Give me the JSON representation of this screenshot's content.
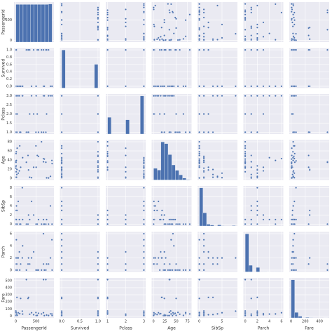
{
  "chart_data": {
    "type": "pairplot",
    "color": "#4c72b0",
    "panel_color": "#eaeaf2",
    "variables": [
      {
        "name": "PassengerId",
        "lim": [
          -44,
          936
        ],
        "xticks": [
          0,
          500
        ],
        "yticks": [
          0,
          500
        ],
        "bins": [
          1,
          90,
          179,
          268,
          357,
          446,
          535,
          624,
          713,
          802,
          891
        ],
        "counts": [
          89,
          89,
          89,
          89,
          89,
          89,
          89,
          89,
          89,
          90
        ]
      },
      {
        "name": "Survived",
        "lim": [
          -0.05,
          1.05
        ],
        "xticks": [
          {
            "value": 0,
            "label": "0.0"
          },
          {
            "value": 0.5,
            "label": "0.5"
          },
          {
            "value": 1,
            "label": "1.0"
          }
        ],
        "yticks": [
          {
            "value": 0,
            "label": "0.0"
          },
          {
            "value": 0.2,
            "label": "0.2"
          },
          {
            "value": 0.4,
            "label": "0.4"
          },
          {
            "value": 0.6,
            "label": "0.6"
          },
          {
            "value": 0.8,
            "label": "0.8"
          },
          {
            "value": 1,
            "label": "1.0"
          }
        ],
        "bins": [
          0,
          0.1,
          0.2,
          0.3,
          0.4,
          0.5,
          0.6,
          0.7,
          0.8,
          0.9,
          1
        ],
        "counts": [
          549,
          0,
          0,
          0,
          0,
          0,
          0,
          0,
          0,
          342
        ]
      },
      {
        "name": "Pclass",
        "lim": [
          0.9,
          3.1
        ],
        "xticks": [
          1,
          2,
          3
        ],
        "yticks": [
          {
            "value": 1,
            "label": "1.0"
          },
          {
            "value": 1.5,
            "label": "1.5"
          },
          {
            "value": 2,
            "label": "2.0"
          },
          {
            "value": 2.5,
            "label": "2.5"
          },
          {
            "value": 3,
            "label": "3.0"
          }
        ],
        "bins": [
          1,
          1.2,
          1.4,
          1.6,
          1.8,
          2,
          2.2,
          2.4,
          2.6,
          2.8,
          3
        ],
        "counts": [
          216,
          0,
          0,
          0,
          0,
          184,
          0,
          0,
          0,
          491
        ]
      },
      {
        "name": "Age",
        "lim": [
          -4,
          84
        ],
        "xticks": [
          0,
          25,
          50,
          75
        ],
        "yticks": [
          0,
          20,
          40,
          60,
          80
        ],
        "bins": [
          0.42,
          8.38,
          16.34,
          24.29,
          32.25,
          40.21,
          48.17,
          56.13,
          64.08,
          72.04,
          80
        ],
        "counts": [
          54,
          46,
          177,
          169,
          118,
          70,
          45,
          24,
          9,
          2
        ]
      },
      {
        "name": "SibSp",
        "lim": [
          -0.4,
          8.4
        ],
        "xticks": [
          0,
          5
        ],
        "yticks": [
          0,
          2,
          4,
          6,
          8
        ],
        "bins": [
          0,
          0.8,
          1.6,
          2.4,
          3.2,
          4,
          4.8,
          5.6,
          6.4,
          7.2,
          8
        ],
        "counts": [
          608,
          209,
          28,
          16,
          0,
          18,
          5,
          0,
          0,
          7
        ]
      },
      {
        "name": "Parch",
        "lim": [
          -0.3,
          6.3
        ],
        "xticks": [
          0,
          2,
          4,
          6
        ],
        "yticks": [
          0,
          2,
          4,
          6
        ],
        "bins": [
          0,
          0.6,
          1.2,
          1.8,
          2.4,
          3,
          3.6,
          4.2,
          4.8,
          5.4,
          6
        ],
        "counts": [
          678,
          118,
          0,
          80,
          0,
          5,
          4,
          0,
          5,
          1
        ]
      },
      {
        "name": "Fare",
        "lim": [
          -25,
          537
        ],
        "xticks": [
          0,
          200,
          400
        ],
        "yticks": [
          0,
          100,
          200,
          300,
          400,
          500
        ],
        "bins": [
          0,
          51.23,
          102.47,
          153.7,
          204.93,
          256.16,
          307.4,
          358.63,
          409.86,
          461.1,
          512.33
        ],
        "counts": [
          732,
          106,
          31,
          2,
          11,
          6,
          0,
          0,
          0,
          3
        ]
      }
    ],
    "rows": [
      [
        1,
        0,
        3,
        22,
        1,
        0,
        7.25
      ],
      [
        2,
        1,
        1,
        38,
        1,
        0,
        71.28
      ],
      [
        3,
        1,
        3,
        26,
        0,
        0,
        7.92
      ],
      [
        4,
        1,
        1,
        35,
        1,
        0,
        53.1
      ],
      [
        5,
        0,
        3,
        35,
        0,
        0,
        8.05
      ],
      [
        7,
        0,
        1,
        54,
        0,
        0,
        51.86
      ],
      [
        8,
        0,
        3,
        2,
        3,
        1,
        21.08
      ],
      [
        9,
        1,
        3,
        27,
        0,
        2,
        11.13
      ],
      [
        10,
        1,
        2,
        14,
        1,
        0,
        30.07
      ],
      [
        12,
        1,
        1,
        58,
        0,
        0,
        26.55
      ],
      [
        14,
        0,
        3,
        39,
        1,
        5,
        31.28
      ],
      [
        17,
        0,
        3,
        2,
        4,
        1,
        29.13
      ],
      [
        25,
        0,
        3,
        8,
        3,
        1,
        21.08
      ],
      [
        28,
        0,
        1,
        19,
        3,
        2,
        263
      ],
      [
        34,
        0,
        2,
        66,
        0,
        0,
        10.5
      ],
      [
        60,
        0,
        3,
        11,
        5,
        2,
        46.9
      ],
      [
        87,
        0,
        3,
        16,
        1,
        3,
        34.38
      ],
      [
        97,
        0,
        1,
        71,
        0,
        0,
        34.65
      ],
      [
        119,
        0,
        1,
        24,
        0,
        1,
        247.52
      ],
      [
        160,
        0,
        3,
        null,
        8,
        2,
        69.55
      ],
      [
        168,
        0,
        3,
        45,
        1,
        4,
        27.9
      ],
      [
        259,
        1,
        1,
        35,
        0,
        0,
        512.33
      ],
      [
        300,
        1,
        1,
        50,
        0,
        1,
        247.52
      ],
      [
        312,
        1,
        1,
        18,
        2,
        2,
        262.38
      ],
      [
        341,
        1,
        2,
        2,
        1,
        1,
        26
      ],
      [
        387,
        0,
        3,
        1,
        5,
        2,
        46.9
      ],
      [
        438,
        1,
        2,
        24,
        2,
        3,
        18.75
      ],
      [
        494,
        0,
        1,
        71,
        0,
        0,
        49.5
      ],
      [
        500,
        0,
        3,
        24,
        0,
        0,
        7.8
      ],
      [
        527,
        1,
        2,
        50,
        0,
        0,
        10.5
      ],
      [
        557,
        1,
        1,
        48,
        1,
        0,
        39.6
      ],
      [
        631,
        1,
        1,
        80,
        0,
        0,
        30
      ],
      [
        679,
        0,
        3,
        43,
        1,
        6,
        46.9
      ],
      [
        680,
        1,
        1,
        36,
        0,
        1,
        512.33
      ],
      [
        700,
        0,
        3,
        42,
        0,
        0,
        7.65
      ],
      [
        738,
        1,
        1,
        35,
        0,
        0,
        512.33
      ],
      [
        756,
        1,
        2,
        0.67,
        1,
        1,
        14.5
      ],
      [
        804,
        1,
        3,
        0.42,
        0,
        1,
        8.52
      ],
      [
        851,
        0,
        3,
        4,
        4,
        2,
        31.28
      ],
      [
        886,
        0,
        3,
        39,
        0,
        5,
        29.13
      ],
      [
        891,
        0,
        3,
        32,
        0,
        0,
        7.75
      ]
    ]
  }
}
